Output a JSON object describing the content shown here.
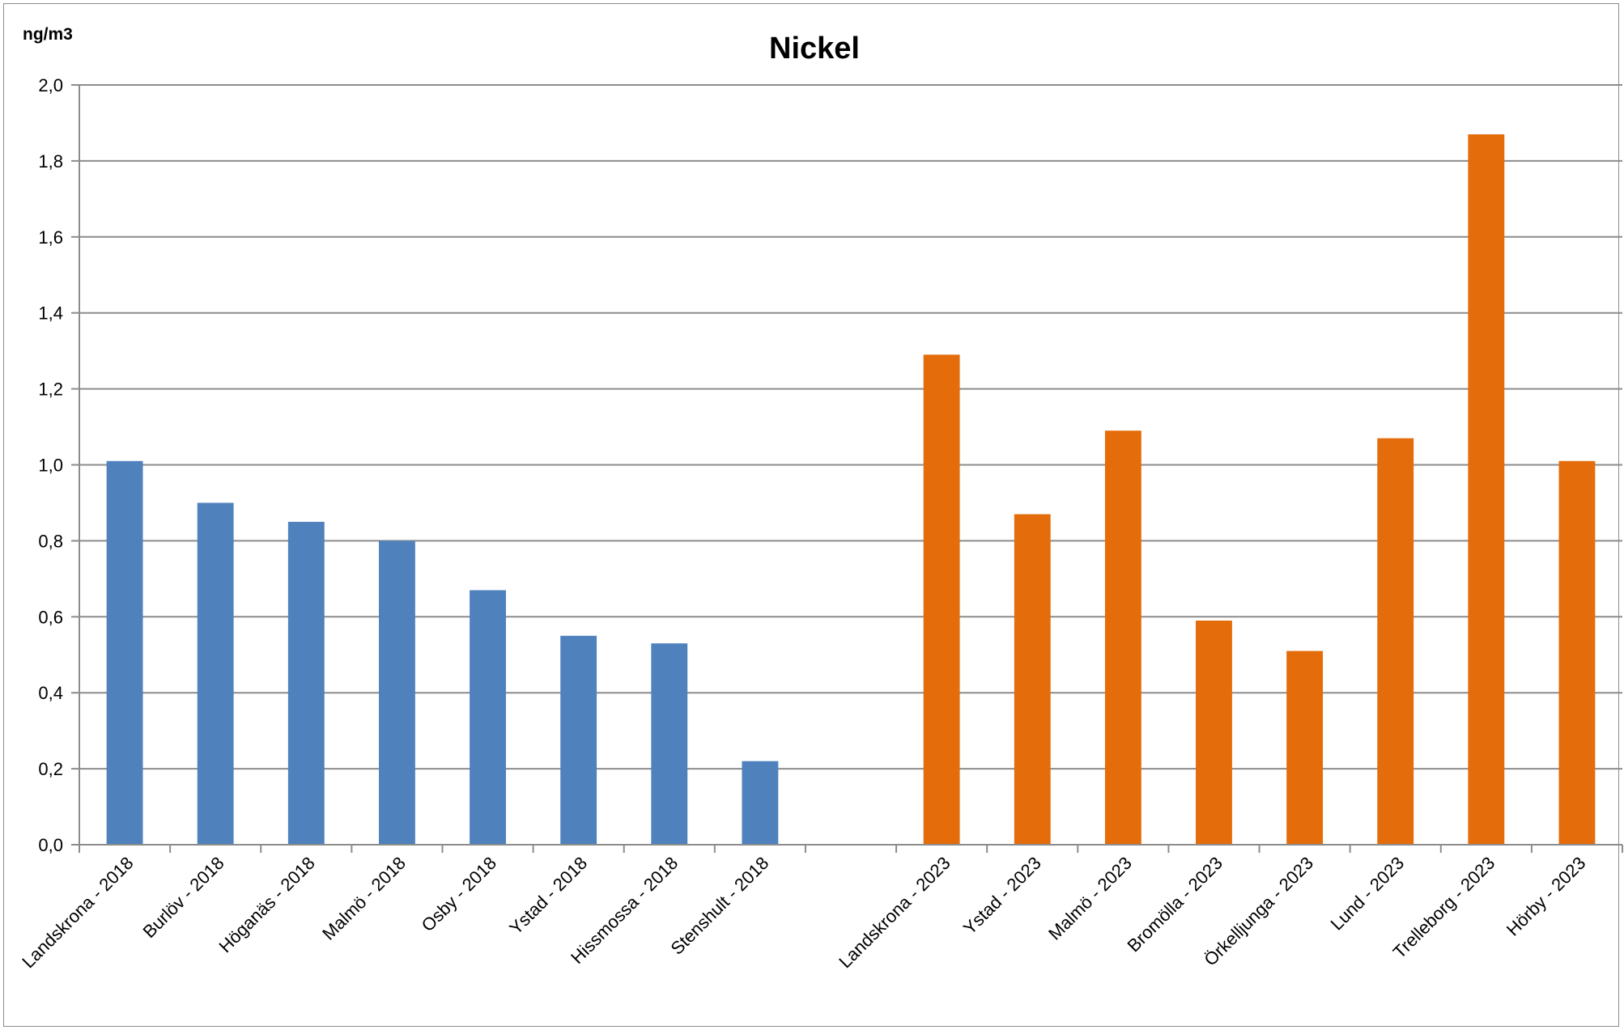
{
  "chart_data": {
    "type": "bar",
    "title": "Nickel",
    "ylabel": "ng/m3",
    "xlabel": "",
    "ylim": [
      0,
      2.0
    ],
    "ytick_step": 0.2,
    "decimal_separator": ",",
    "grid": true,
    "legend": "none",
    "categories": [
      "Landskrona - 2018",
      "Burlöv - 2018",
      "Höganäs - 2018",
      "Malmö - 2018",
      "Osby - 2018",
      "Ystad - 2018",
      "Hissmossa - 2018",
      "Stenshult - 2018",
      "",
      "Landskrona - 2023",
      "Ystad - 2023",
      "Malmö - 2023",
      "Bromölla - 2023",
      "Örkelljunga - 2023",
      "Lund - 2023",
      "Trelleborg - 2023",
      "Hörby - 2023"
    ],
    "values": [
      1.01,
      0.9,
      0.85,
      0.8,
      0.67,
      0.55,
      0.53,
      0.22,
      null,
      1.29,
      0.87,
      1.09,
      0.59,
      0.51,
      1.07,
      1.87,
      1.01
    ],
    "bar_colors": [
      "#4f81bd",
      "#4f81bd",
      "#4f81bd",
      "#4f81bd",
      "#4f81bd",
      "#4f81bd",
      "#4f81bd",
      "#4f81bd",
      "#ffffff",
      "#e46c0a",
      "#e46c0a",
      "#e46c0a",
      "#e46c0a",
      "#e46c0a",
      "#e46c0a",
      "#e46c0a",
      "#e46c0a"
    ],
    "colors": {
      "group_2018": "#4f81bd",
      "group_2023": "#e46c0a",
      "grid": "#8c8c8c"
    }
  }
}
